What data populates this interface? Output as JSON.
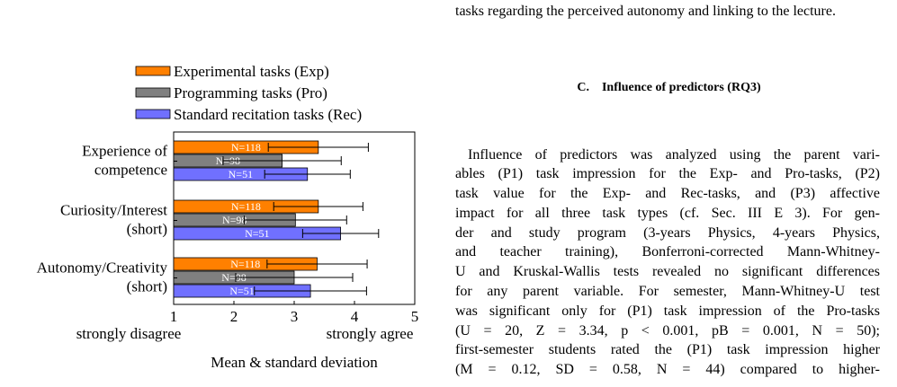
{
  "figure": {
    "chart_data": {
      "type": "bar",
      "orientation": "horizontal",
      "categories": [
        [
          "Experience of",
          "competence"
        ],
        [
          "Curiosity/Interest",
          "(short)"
        ],
        [
          "Autonomy/Creativity",
          "(short)"
        ]
      ],
      "series": [
        {
          "name": "Experimental tasks (Exp)",
          "color": "#ff8000",
          "values": [
            3.4,
            3.4,
            3.38
          ],
          "sd": [
            0.83,
            0.74,
            0.83
          ],
          "n_labels": [
            "N=118",
            "N=118",
            "N=118"
          ]
        },
        {
          "name": "Programming tasks (Pro)",
          "color": "#808080",
          "values": [
            2.8,
            3.02,
            3.0
          ],
          "sd": [
            0.98,
            0.85,
            0.97
          ],
          "n_labels": [
            "N=98",
            "N=98",
            "N=98"
          ]
        },
        {
          "name": "Standard recitation tasks (Rec)",
          "color": "#7070ff",
          "values": [
            3.22,
            3.77,
            3.27
          ],
          "sd": [
            0.71,
            0.63,
            0.93
          ],
          "n_labels": [
            "N=51",
            "N=51",
            "N=51"
          ]
        }
      ],
      "xlim": [
        1,
        5
      ],
      "xticks": [
        1,
        2,
        3,
        4,
        5
      ],
      "xtick_left_label": "strongly disagree",
      "xtick_right_label": "strongly agree",
      "xlabel": "Mean & standard deviation",
      "legend": "top",
      "grid": false
    }
  },
  "text": {
    "top_line": "tasks regarding the perceived autonomy and linking to the lecture.",
    "section_heading": "C. Influence of predictors (RQ3)",
    "paragraph": [
      "Influence of predictors was analyzed using the parent vari-",
      "ables (P1) task impression for the Exp- and Pro-tasks, (P2)",
      "task value for the Exp- and Rec-tasks, and (P3) affective",
      "impact for all three task types (cf. Sec. III E 3). For gen-",
      "der and study program (3-years Physics, 4-years Physics,",
      "and teacher training), Bonferroni-corrected Mann-Whitney-",
      "U and Kruskal-Wallis tests revealed no significant differences",
      "for any parent variable. For semester, Mann-Whitney-U test",
      "was significant only for (P1) task impression of the Pro-tasks",
      "(U = 20, Z = 3.34, p < 0.001, pB = 0.001, N = 50);",
      "first-semester students rated the (P1) task impression higher",
      "(M = 0.12, SD = 0.58, N = 44) compared to higher-"
    ]
  }
}
